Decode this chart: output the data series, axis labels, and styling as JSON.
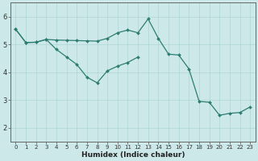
{
  "xlabel": "Humidex (Indice chaleur)",
  "ylabel": "",
  "bg_color": "#cce8e8",
  "line_color": "#2e7d72",
  "grid_color": "#aed4d4",
  "xlim": [
    -0.5,
    23.5
  ],
  "ylim": [
    1.5,
    6.5
  ],
  "xticks": [
    0,
    1,
    2,
    3,
    4,
    5,
    6,
    7,
    8,
    9,
    10,
    11,
    12,
    13,
    14,
    15,
    16,
    17,
    18,
    19,
    20,
    21,
    22,
    23
  ],
  "yticks": [
    2,
    3,
    4,
    5,
    6
  ],
  "line1_x": [
    0,
    1,
    2,
    3,
    4,
    5,
    6,
    7,
    8,
    9,
    10,
    11,
    12,
    13,
    14,
    15,
    16,
    17,
    18,
    19,
    20,
    21,
    22,
    23
  ],
  "line1_y": [
    5.55,
    5.07,
    5.08,
    5.18,
    5.16,
    5.15,
    5.14,
    5.13,
    5.12,
    5.22,
    5.42,
    5.52,
    5.42,
    5.92,
    5.22,
    4.65,
    4.62,
    4.12,
    2.95,
    2.92,
    2.45,
    2.52,
    2.55,
    2.75
  ],
  "line2_x": [
    0,
    1,
    2,
    3,
    4,
    5,
    6,
    7,
    8,
    9,
    10,
    11,
    12
  ],
  "line2_y": [
    5.55,
    5.07,
    5.08,
    5.18,
    4.82,
    4.55,
    4.28,
    3.82,
    3.62,
    4.05,
    4.22,
    4.35,
    4.55
  ],
  "marker": "D",
  "markersize": 2.0,
  "linewidth": 0.9
}
